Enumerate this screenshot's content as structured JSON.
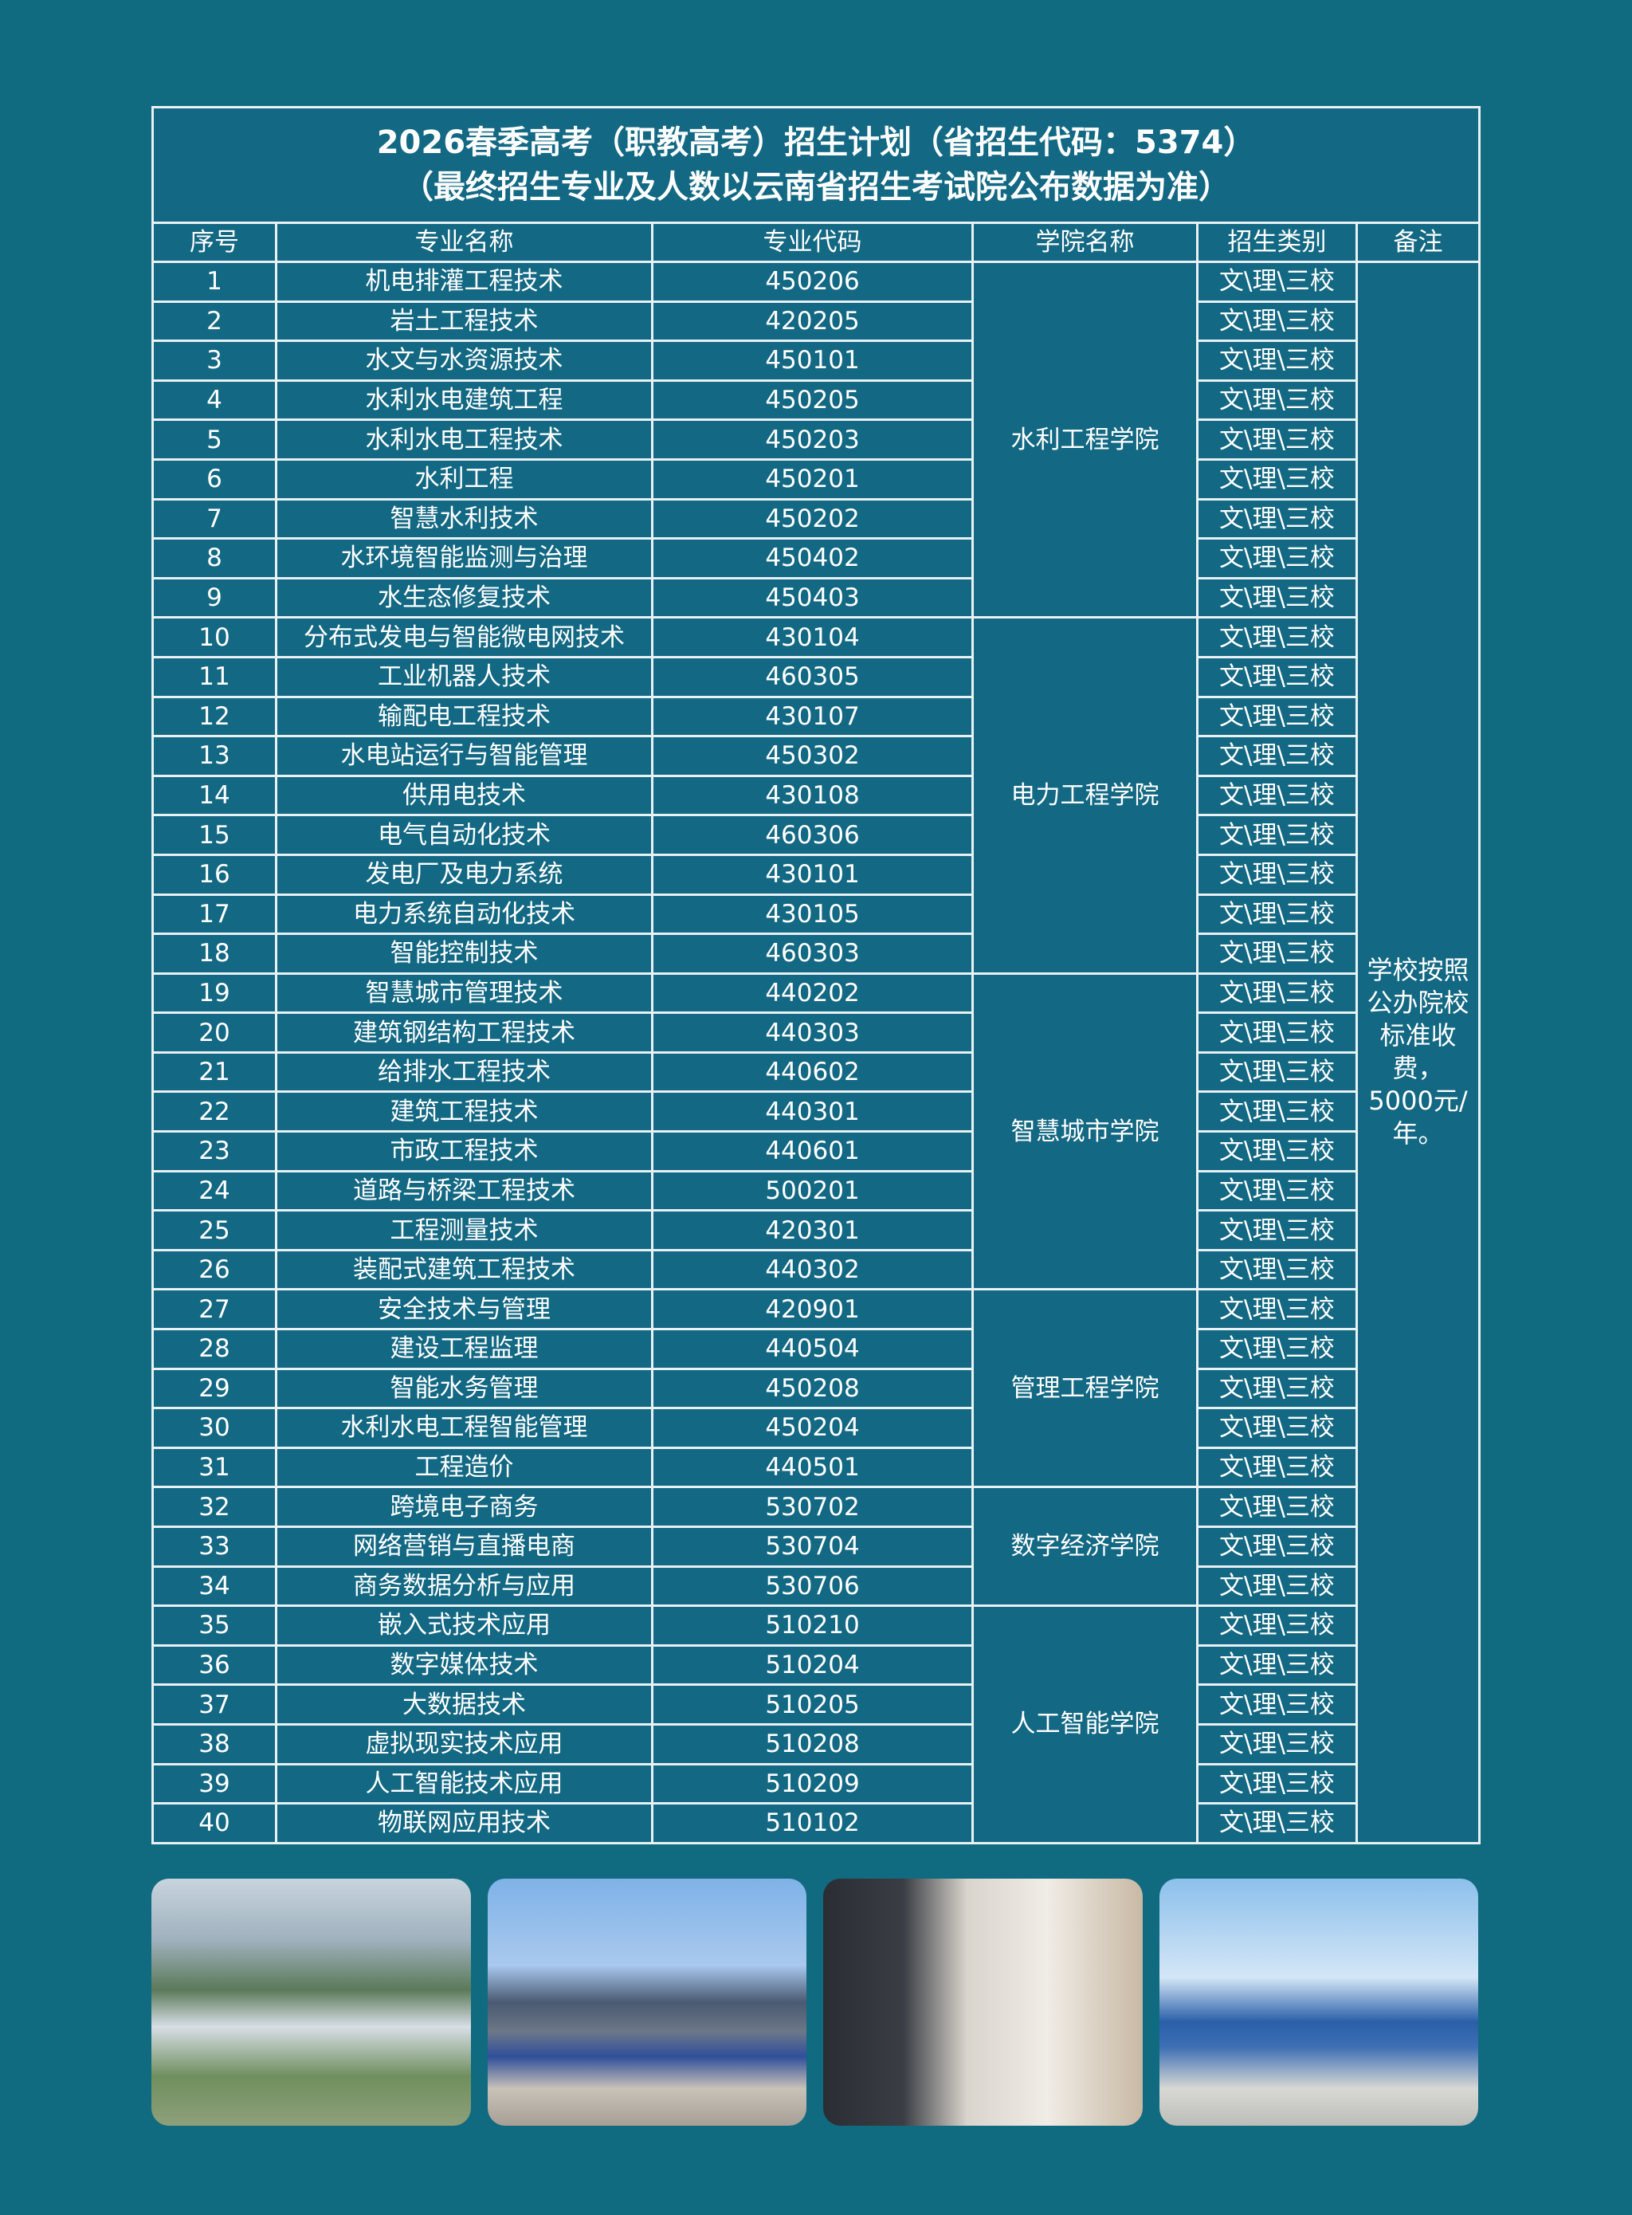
{
  "title": {
    "line1": "2026春季高考（职教高考）招生计划（省招生代码：5374）",
    "line2": "（最终招生专业及人数以云南省招生考试院公布数据为准）"
  },
  "headers": [
    "序号",
    "专业名称",
    "专业代码",
    "学院名称",
    "招生类别",
    "备注"
  ],
  "remark": "学校按照公办院校标准收费，5000元/年。",
  "colleges": [
    {
      "name": "水利工程学院",
      "rows": 9
    },
    {
      "name": "电力工程学院",
      "rows": 9
    },
    {
      "name": "智慧城市学院",
      "rows": 8
    },
    {
      "name": "管理工程学院",
      "rows": 5
    },
    {
      "name": "数字经济学院",
      "rows": 3
    },
    {
      "name": "人工智能学院",
      "rows": 6
    }
  ],
  "rows": [
    {
      "no": "1",
      "major": "机电排灌工程技术",
      "code": "450206",
      "category": "文\\理\\三校"
    },
    {
      "no": "2",
      "major": "岩土工程技术",
      "code": "420205",
      "category": "文\\理\\三校"
    },
    {
      "no": "3",
      "major": "水文与水资源技术",
      "code": "450101",
      "category": "文\\理\\三校"
    },
    {
      "no": "4",
      "major": "水利水电建筑工程",
      "code": "450205",
      "category": "文\\理\\三校"
    },
    {
      "no": "5",
      "major": "水利水电工程技术",
      "code": "450203",
      "category": "文\\理\\三校"
    },
    {
      "no": "6",
      "major": "水利工程",
      "code": "450201",
      "category": "文\\理\\三校"
    },
    {
      "no": "7",
      "major": "智慧水利技术",
      "code": "450202",
      "category": "文\\理\\三校"
    },
    {
      "no": "8",
      "major": "水环境智能监测与治理",
      "code": "450402",
      "category": "文\\理\\三校"
    },
    {
      "no": "9",
      "major": "水生态修复技术",
      "code": "450403",
      "category": "文\\理\\三校"
    },
    {
      "no": "10",
      "major": "分布式发电与智能微电网技术",
      "code": "430104",
      "category": "文\\理\\三校"
    },
    {
      "no": "11",
      "major": "工业机器人技术",
      "code": "460305",
      "category": "文\\理\\三校"
    },
    {
      "no": "12",
      "major": "输配电工程技术",
      "code": "430107",
      "category": "文\\理\\三校"
    },
    {
      "no": "13",
      "major": "水电站运行与智能管理",
      "code": "450302",
      "category": "文\\理\\三校"
    },
    {
      "no": "14",
      "major": "供用电技术",
      "code": "430108",
      "category": "文\\理\\三校"
    },
    {
      "no": "15",
      "major": "电气自动化技术",
      "code": "460306",
      "category": "文\\理\\三校"
    },
    {
      "no": "16",
      "major": "发电厂及电力系统",
      "code": "430101",
      "category": "文\\理\\三校"
    },
    {
      "no": "17",
      "major": "电力系统自动化技术",
      "code": "430105",
      "category": "文\\理\\三校"
    },
    {
      "no": "18",
      "major": "智能控制技术",
      "code": "460303",
      "category": "文\\理\\三校"
    },
    {
      "no": "19",
      "major": "智慧城市管理技术",
      "code": "440202",
      "category": "文\\理\\三校"
    },
    {
      "no": "20",
      "major": "建筑钢结构工程技术",
      "code": "440303",
      "category": "文\\理\\三校"
    },
    {
      "no": "21",
      "major": "给排水工程技术",
      "code": "440602",
      "category": "文\\理\\三校"
    },
    {
      "no": "22",
      "major": "建筑工程技术",
      "code": "440301",
      "category": "文\\理\\三校"
    },
    {
      "no": "23",
      "major": "市政工程技术",
      "code": "440601",
      "category": "文\\理\\三校"
    },
    {
      "no": "24",
      "major": "道路与桥梁工程技术",
      "code": "500201",
      "category": "文\\理\\三校"
    },
    {
      "no": "25",
      "major": "工程测量技术",
      "code": "420301",
      "category": "文\\理\\三校"
    },
    {
      "no": "26",
      "major": "装配式建筑工程技术",
      "code": "440302",
      "category": "文\\理\\三校"
    },
    {
      "no": "27",
      "major": "安全技术与管理",
      "code": "420901",
      "category": "文\\理\\三校"
    },
    {
      "no": "28",
      "major": "建设工程监理",
      "code": "440504",
      "category": "文\\理\\三校"
    },
    {
      "no": "29",
      "major": "智能水务管理",
      "code": "450208",
      "category": "文\\理\\三校"
    },
    {
      "no": "30",
      "major": "水利水电工程智能管理",
      "code": "450204",
      "category": "文\\理\\三校"
    },
    {
      "no": "31",
      "major": "工程造价",
      "code": "440501",
      "category": "文\\理\\三校"
    },
    {
      "no": "32",
      "major": "跨境电子商务",
      "code": "530702",
      "category": "文\\理\\三校"
    },
    {
      "no": "33",
      "major": "网络营销与直播电商",
      "code": "530704",
      "category": "文\\理\\三校"
    },
    {
      "no": "34",
      "major": "商务数据分析与应用",
      "code": "530706",
      "category": "文\\理\\三校"
    },
    {
      "no": "35",
      "major": "嵌入式技术应用",
      "code": "510210",
      "category": "文\\理\\三校"
    },
    {
      "no": "36",
      "major": "数字媒体技术",
      "code": "510204",
      "category": "文\\理\\三校"
    },
    {
      "no": "37",
      "major": "大数据技术",
      "code": "510205",
      "category": "文\\理\\三校"
    },
    {
      "no": "38",
      "major": "虚拟现实技术应用",
      "code": "510208",
      "category": "文\\理\\三校"
    },
    {
      "no": "39",
      "major": "人工智能技术应用",
      "code": "510209",
      "category": "文\\理\\三校"
    },
    {
      "no": "40",
      "major": "物联网应用技术",
      "code": "510102",
      "category": "文\\理\\三校"
    }
  ],
  "photos": [
    "campus-aerial-photo",
    "campus-gate-fair-photo",
    "registration-desk-photo",
    "enrollment-fair-tents-photo"
  ],
  "colors": {
    "background": "#106a80",
    "table": "#136883",
    "border": "#e8f1f4",
    "text": "#ffffff"
  }
}
